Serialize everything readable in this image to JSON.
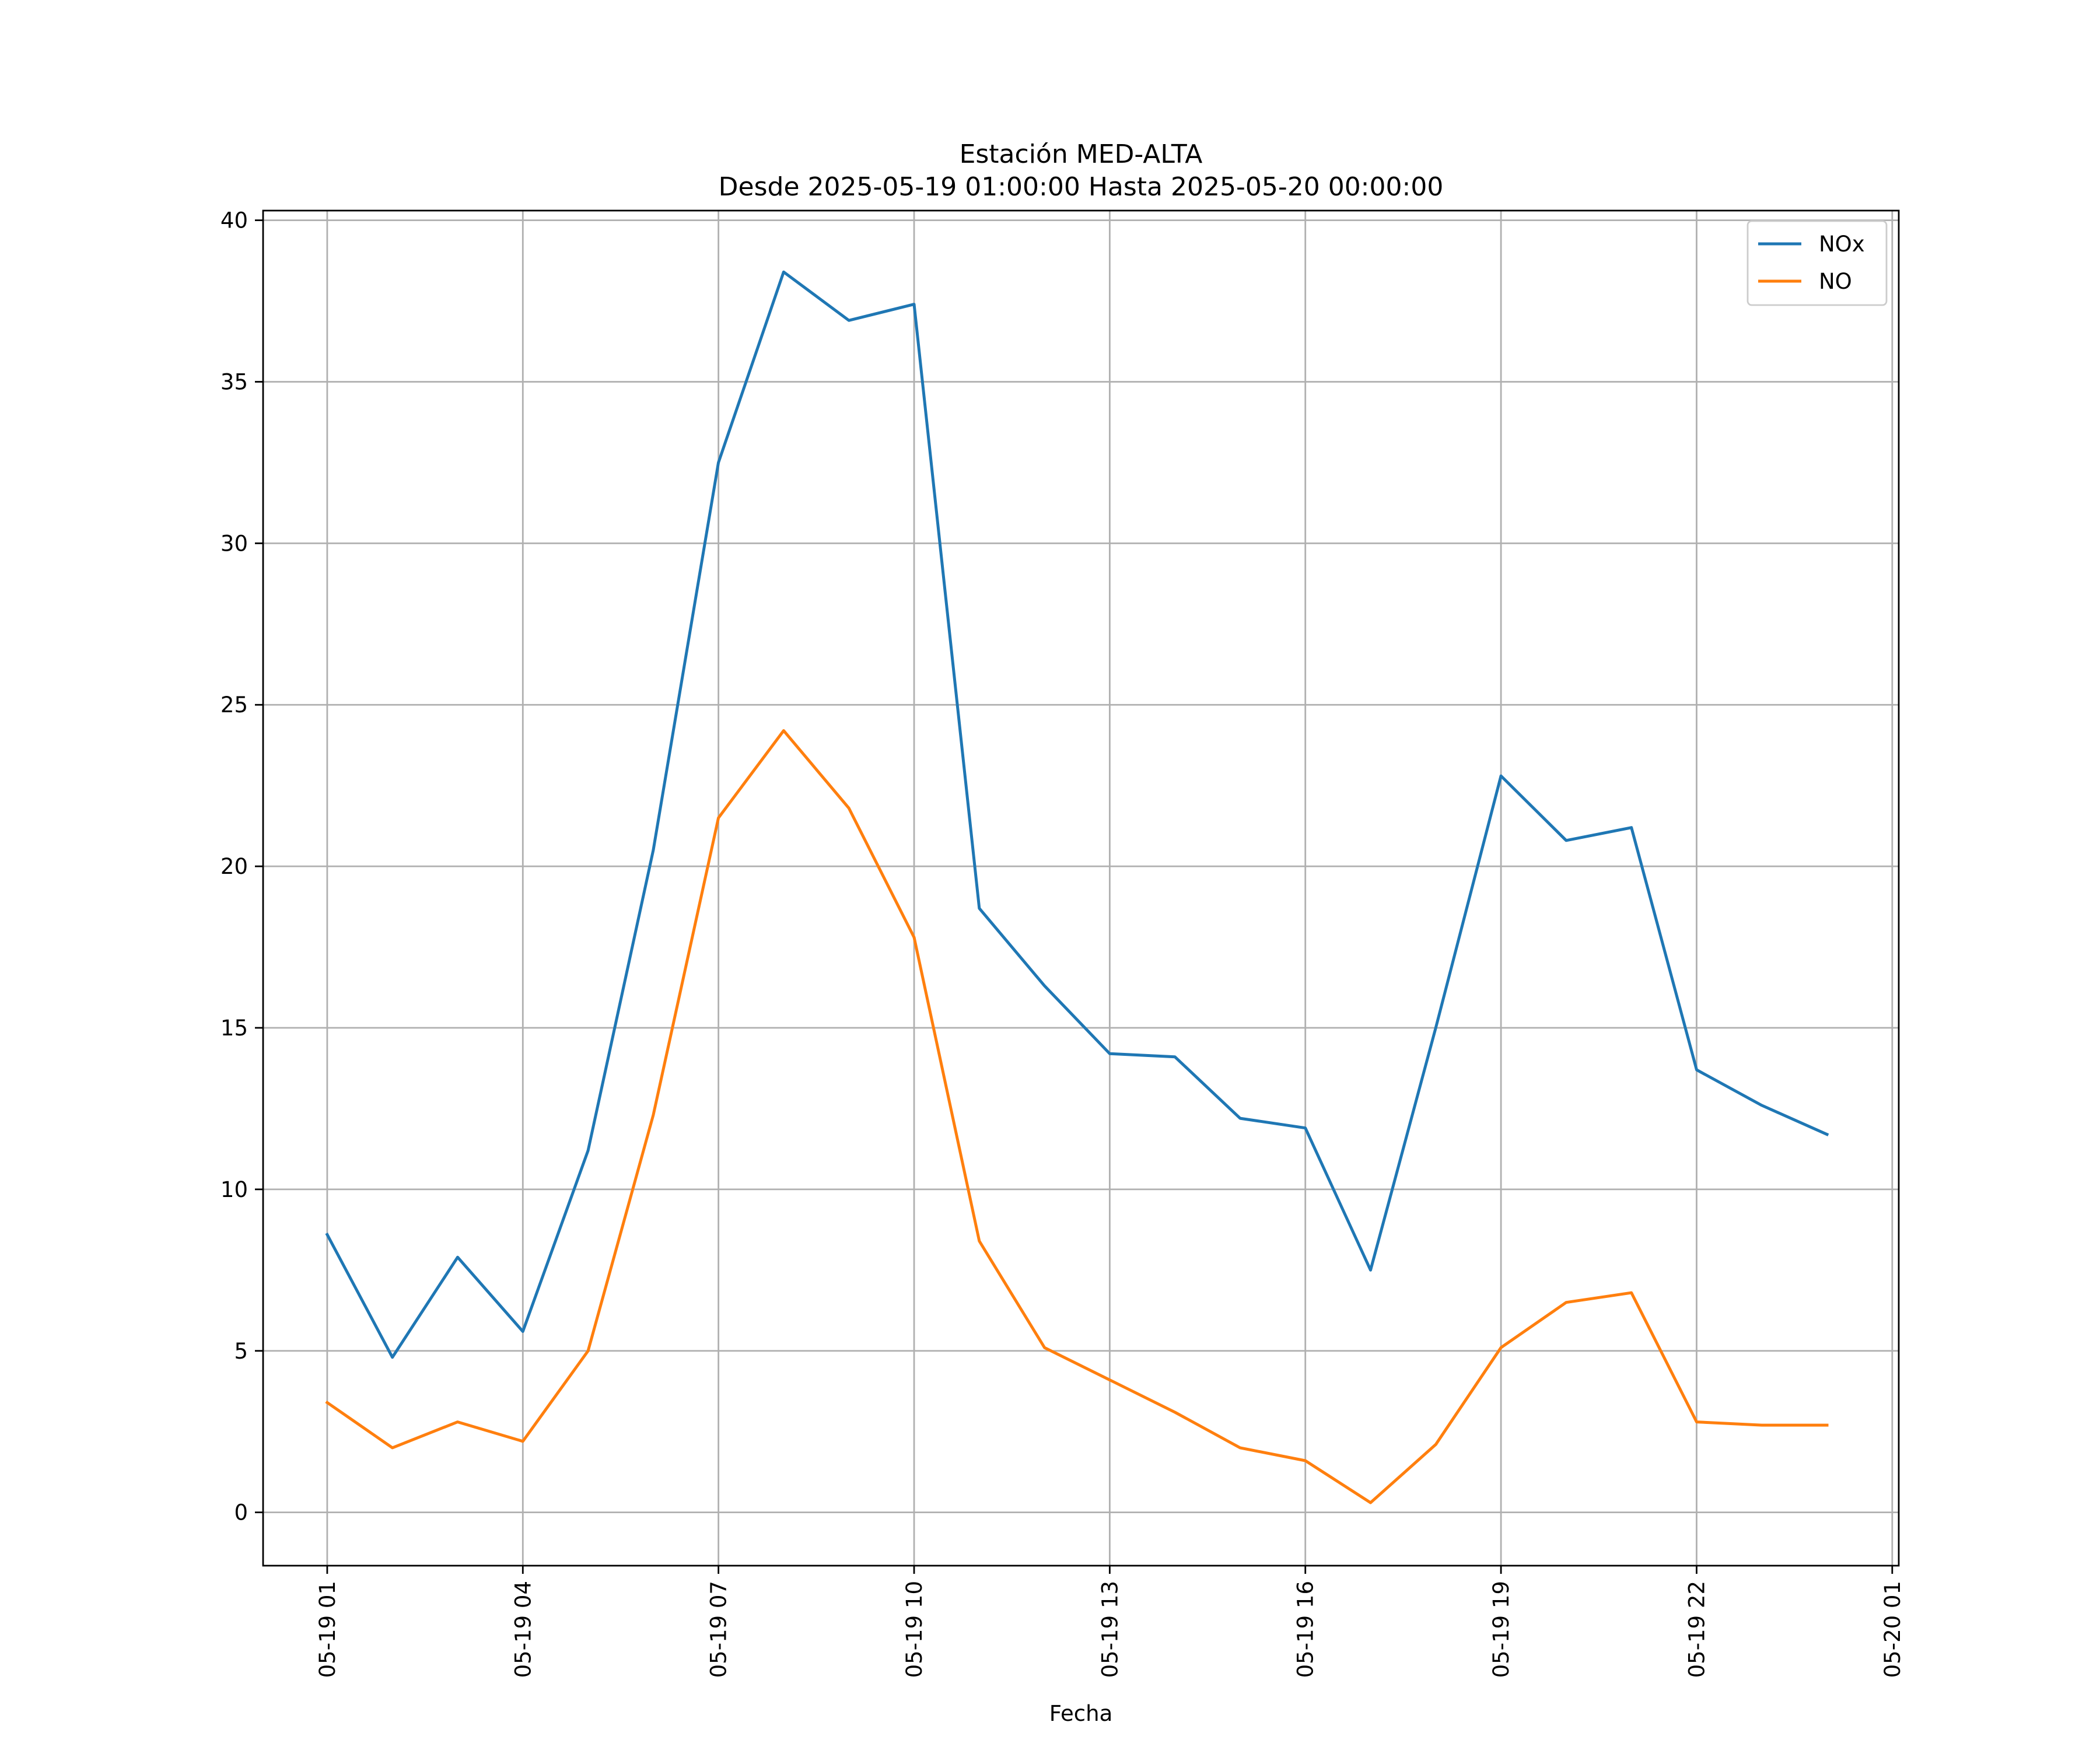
{
  "chart_data": {
    "type": "line",
    "title": "Estación MED-ALTA",
    "subtitle": "Desde 2025-05-19 01:00:00 Hasta 2025-05-20 00:00:00",
    "xlabel": "Fecha",
    "ylabel": "",
    "x": [
      "2025-05-19 01:00",
      "2025-05-19 02:00",
      "2025-05-19 03:00",
      "2025-05-19 04:00",
      "2025-05-19 05:00",
      "2025-05-19 06:00",
      "2025-05-19 07:00",
      "2025-05-19 08:00",
      "2025-05-19 09:00",
      "2025-05-19 10:00",
      "2025-05-19 11:00",
      "2025-05-19 12:00",
      "2025-05-19 13:00",
      "2025-05-19 14:00",
      "2025-05-19 15:00",
      "2025-05-19 16:00",
      "2025-05-19 17:00",
      "2025-05-19 18:00",
      "2025-05-19 19:00",
      "2025-05-19 20:00",
      "2025-05-19 21:00",
      "2025-05-19 22:00",
      "2025-05-19 23:00",
      "2025-05-20 00:00"
    ],
    "xlim": [
      "2025-05-19 00:01",
      "2025-05-20 01:06"
    ],
    "xticks": [
      {
        "value": "2025-05-19 01:00",
        "label": "05-19 01"
      },
      {
        "value": "2025-05-19 04:00",
        "label": "05-19 04"
      },
      {
        "value": "2025-05-19 07:00",
        "label": "05-19 07"
      },
      {
        "value": "2025-05-19 10:00",
        "label": "05-19 10"
      },
      {
        "value": "2025-05-19 13:00",
        "label": "05-19 13"
      },
      {
        "value": "2025-05-19 16:00",
        "label": "05-19 16"
      },
      {
        "value": "2025-05-19 19:00",
        "label": "05-19 19"
      },
      {
        "value": "2025-05-19 22:00",
        "label": "05-19 22"
      },
      {
        "value": "2025-05-20 01:00",
        "label": "05-20 01"
      }
    ],
    "ylim": [
      -1.65,
      40.3
    ],
    "yticks": [
      0,
      5,
      10,
      15,
      20,
      25,
      30,
      35,
      40
    ],
    "grid": true,
    "legend_position": "top-right",
    "series": [
      {
        "name": "NOx",
        "color": "#1f77b4",
        "values": [
          8.6,
          4.8,
          7.9,
          5.6,
          11.2,
          20.5,
          32.5,
          38.4,
          36.9,
          37.4,
          18.7,
          16.3,
          14.2,
          14.1,
          12.2,
          11.9,
          7.5,
          15.0,
          22.8,
          20.8,
          21.2,
          13.7,
          12.6,
          11.7
        ]
      },
      {
        "name": "NO",
        "color": "#ff7f0e",
        "values": [
          3.4,
          2.0,
          2.8,
          2.2,
          5.0,
          12.3,
          21.5,
          24.2,
          21.8,
          17.8,
          8.4,
          5.1,
          4.1,
          3.1,
          2.0,
          1.6,
          0.3,
          2.1,
          5.1,
          6.5,
          6.8,
          2.8,
          2.7,
          2.7
        ]
      }
    ]
  }
}
